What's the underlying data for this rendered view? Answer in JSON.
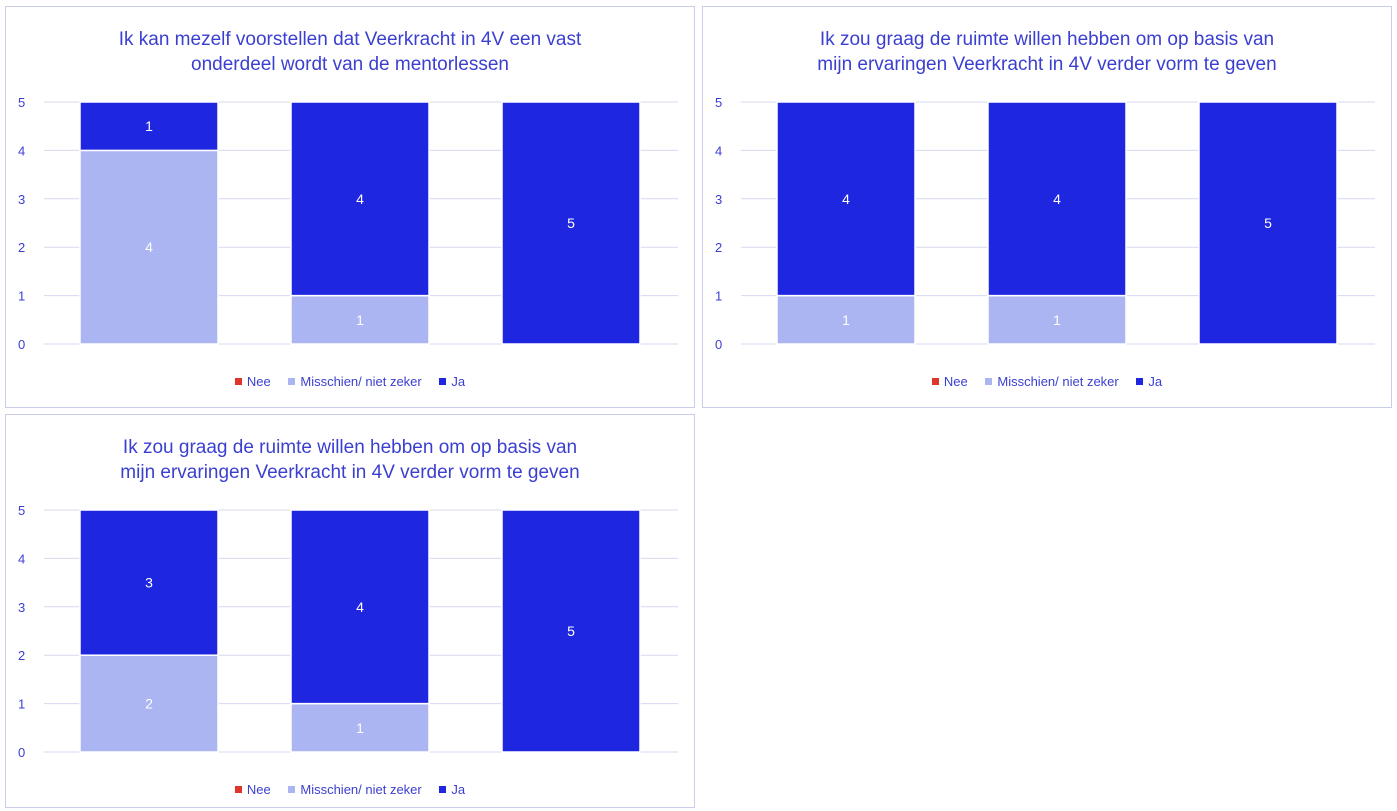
{
  "colors": {
    "nee": "#e0352b",
    "misschien": "#aab5f2",
    "ja": "#1f26e0",
    "text": "#3b3fd0",
    "grid": "#d6d9f0"
  },
  "chart_data": [
    {
      "type": "bar",
      "stacked": true,
      "title_lines": [
        "Ik kan mezelf voorstellen dat Veerkracht in 4V een vast",
        "onderdeel wordt van de mentorlessen"
      ],
      "categories": [
        "",
        "",
        ""
      ],
      "ylim": [
        0,
        5
      ],
      "yticks": [
        "0",
        "1",
        "2",
        "3",
        "4",
        "5"
      ],
      "grid": true,
      "legend_position": "bottom",
      "series": [
        {
          "name": "Nee",
          "color": "#e0352b",
          "values": [
            0,
            0,
            0
          ]
        },
        {
          "name": "Misschien/ niet zeker",
          "color": "#aab5f2",
          "values": [
            4,
            1,
            0
          ]
        },
        {
          "name": "Ja",
          "color": "#1f26e0",
          "values": [
            1,
            4,
            5
          ]
        }
      ]
    },
    {
      "type": "bar",
      "stacked": true,
      "title_lines": [
        "Ik zou graag de ruimte willen hebben om op basis van",
        "mijn ervaringen Veerkracht in 4V verder vorm te geven"
      ],
      "categories": [
        "",
        "",
        ""
      ],
      "ylim": [
        0,
        5
      ],
      "yticks": [
        "0",
        "1",
        "2",
        "3",
        "4",
        "5"
      ],
      "grid": true,
      "legend_position": "bottom",
      "series": [
        {
          "name": "Nee",
          "color": "#e0352b",
          "values": [
            0,
            0,
            0
          ]
        },
        {
          "name": "Misschien/ niet zeker",
          "color": "#aab5f2",
          "values": [
            1,
            1,
            0
          ]
        },
        {
          "name": "Ja",
          "color": "#1f26e0",
          "values": [
            4,
            4,
            5
          ]
        }
      ]
    },
    {
      "type": "bar",
      "stacked": true,
      "title_lines": [
        "Ik zou graag de ruimte willen hebben om op basis van",
        "mijn ervaringen Veerkracht in 4V verder vorm te geven"
      ],
      "categories": [
        "",
        "",
        ""
      ],
      "ylim": [
        0,
        5
      ],
      "yticks": [
        "0",
        "1",
        "2",
        "3",
        "4",
        "5"
      ],
      "grid": true,
      "legend_position": "bottom",
      "series": [
        {
          "name": "Nee",
          "color": "#e0352b",
          "values": [
            0,
            0,
            0
          ]
        },
        {
          "name": "Misschien/ niet zeker",
          "color": "#aab5f2",
          "values": [
            2,
            1,
            0
          ]
        },
        {
          "name": "Ja",
          "color": "#1f26e0",
          "values": [
            3,
            4,
            5
          ]
        }
      ]
    }
  ]
}
